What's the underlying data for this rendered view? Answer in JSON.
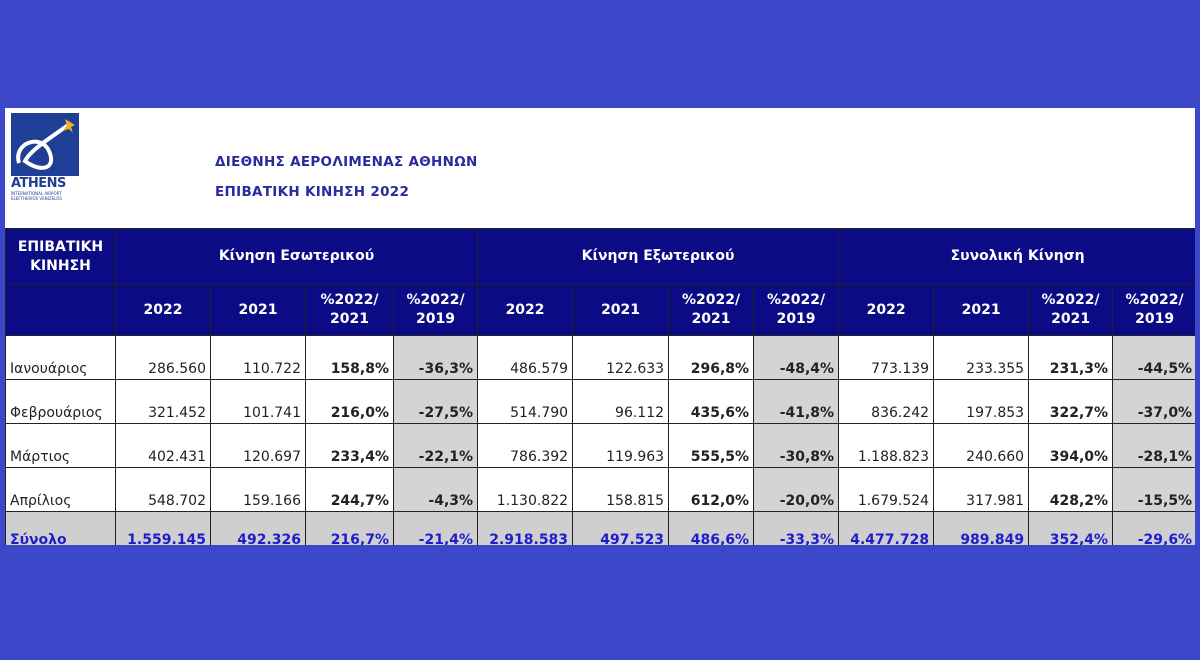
{
  "header": {
    "logo_text": "ATHENS",
    "logo_sub": "INTERNATIONAL AIRPORT ELEFTHERIOS VENIZELOS",
    "title": "ΔΙΕΘΝΗΣ ΑΕΡΟΛΙΜΕΝΑΣ ΑΘΗΝΩΝ",
    "subtitle": "ΕΠΙΒΑΤΙΚΗ ΚΙΝΗΣΗ 2022"
  },
  "table": {
    "corner": "ΕΠΙΒΑΤΙΚΗ ΚΙΝΗΣΗ",
    "groups": [
      "Κίνηση Εσωτερικού",
      "Κίνηση Εξωτερικού",
      "Συνολική Κίνηση"
    ],
    "subheaders": [
      "2022",
      "2021",
      "%2022/ 2021",
      "%2022/ 2019"
    ],
    "rows": [
      {
        "month": "Ιανουάριος",
        "values": [
          "286.560",
          "110.722",
          "158,8%",
          "-36,3%",
          "486.579",
          "122.633",
          "296,8%",
          "-48,4%",
          "773.139",
          "233.355",
          "231,3%",
          "-44,5%"
        ]
      },
      {
        "month": "Φεβρουάριος",
        "values": [
          "321.452",
          "101.741",
          "216,0%",
          "-27,5%",
          "514.790",
          "96.112",
          "435,6%",
          "-41,8%",
          "836.242",
          "197.853",
          "322,7%",
          "-37,0%"
        ]
      },
      {
        "month": "Μάρτιος",
        "values": [
          "402.431",
          "120.697",
          "233,4%",
          "-22,1%",
          "786.392",
          "119.963",
          "555,5%",
          "-30,8%",
          "1.188.823",
          "240.660",
          "394,0%",
          "-28,1%"
        ]
      },
      {
        "month": "Απρίλιος",
        "values": [
          "548.702",
          "159.166",
          "244,7%",
          "-4,3%",
          "1.130.822",
          "158.815",
          "612,0%",
          "-20,0%",
          "1.679.524",
          "317.981",
          "428,2%",
          "-15,5%"
        ]
      }
    ],
    "total": {
      "month": "Σύνολο",
      "values": [
        "1.559.145",
        "492.326",
        "216,7%",
        "-21,4%",
        "2.918.583",
        "497.523",
        "486,6%",
        "-33,3%",
        "4.477.728",
        "989.849",
        "352,4%",
        "-29,6%"
      ]
    }
  }
}
